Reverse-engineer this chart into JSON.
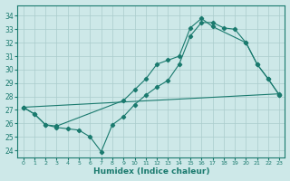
{
  "xlabel": "Humidex (Indice chaleur)",
  "bg_color": "#cde8e8",
  "grid_color": "#aacccc",
  "line_color": "#1a7a6e",
  "x_ticks": [
    0,
    1,
    2,
    3,
    4,
    5,
    6,
    7,
    8,
    9,
    10,
    11,
    12,
    13,
    14,
    15,
    16,
    17,
    18,
    19,
    20,
    21,
    22,
    23
  ],
  "y_ticks": [
    24,
    25,
    26,
    27,
    28,
    29,
    30,
    31,
    32,
    33,
    34
  ],
  "ylim": [
    23.5,
    34.8
  ],
  "xlim": [
    -0.5,
    23.5
  ],
  "line1_x": [
    0,
    23
  ],
  "line1_y": [
    27.2,
    28.2
  ],
  "line2_x": [
    0,
    1,
    2,
    3,
    4,
    5,
    6,
    7,
    8,
    9,
    10,
    11,
    12,
    13,
    14,
    15,
    16,
    17,
    18,
    19,
    20,
    21,
    22,
    23
  ],
  "line2_y": [
    27.2,
    26.7,
    25.9,
    25.7,
    25.6,
    25.5,
    25.0,
    23.9,
    25.9,
    26.5,
    27.4,
    28.1,
    28.7,
    29.2,
    30.4,
    32.5,
    33.5,
    33.5,
    33.1,
    33.0,
    32.0,
    30.4,
    29.3,
    28.1
  ],
  "line3_x": [
    0,
    1,
    2,
    3,
    9,
    10,
    11,
    12,
    13,
    14,
    15,
    16,
    17,
    20,
    21,
    22,
    23
  ],
  "line3_y": [
    27.2,
    26.7,
    25.9,
    25.8,
    27.7,
    28.5,
    29.3,
    30.4,
    30.7,
    31.0,
    33.1,
    33.8,
    33.2,
    32.0,
    30.4,
    29.3,
    28.1
  ]
}
